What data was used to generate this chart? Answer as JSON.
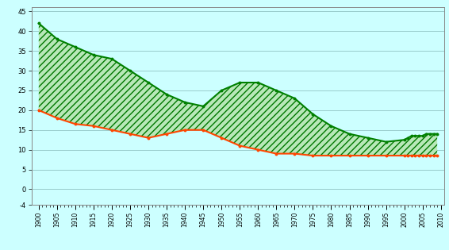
{
  "years": [
    1900,
    1905,
    1910,
    1915,
    1920,
    1925,
    1930,
    1935,
    1940,
    1945,
    1950,
    1955,
    1960,
    1965,
    1970,
    1975,
    1980,
    1985,
    1990,
    1995,
    2000,
    2001,
    2002,
    2003,
    2004,
    2005,
    2006,
    2007,
    2008,
    2009
  ],
  "natalidad": [
    42,
    38,
    36,
    34,
    33,
    30,
    27,
    24,
    22,
    21,
    25,
    27,
    27,
    25,
    23,
    19,
    16,
    14,
    13,
    12,
    12.5,
    13,
    13.5,
    13.5,
    13.5,
    13.5,
    14,
    14,
    14,
    14
  ],
  "mortalidad": [
    20,
    18,
    16.5,
    16,
    15,
    14,
    13,
    14,
    15,
    15,
    13,
    11,
    10,
    9,
    9,
    8.5,
    8.5,
    8.5,
    8.5,
    8.5,
    8.5,
    8.5,
    8.5,
    8.5,
    8.5,
    8.5,
    8.5,
    8.5,
    8.5,
    8.5
  ],
  "green_color": "#008000",
  "red_color": "#ff4500",
  "bg_color": "#ccffff",
  "fill_face": "#b8e8b8",
  "fill_edge": "#007700",
  "outer_bg": "#cce8ff",
  "ylim": [
    -4,
    46
  ],
  "xlim": [
    1898,
    2011
  ],
  "yticks": [
    -4,
    0,
    5,
    10,
    15,
    20,
    25,
    30,
    35,
    40,
    45
  ],
  "ytick_labels": [
    "-4",
    "0",
    "5",
    "10",
    "15",
    "20",
    "25",
    "30",
    "35",
    "40",
    "45"
  ],
  "major_xticks": [
    1900,
    1905,
    1910,
    1915,
    1920,
    1925,
    1930,
    1935,
    1940,
    1945,
    1950,
    1955,
    1960,
    1965,
    1970,
    1975,
    1980,
    1985,
    1990,
    1995,
    2000,
    2005,
    2010
  ],
  "major_xlabels": [
    "1900",
    "1905",
    "1910",
    "1915",
    "1920",
    "1925",
    "1930",
    "1935",
    "1940",
    "1945",
    "1950",
    "1955",
    "1960",
    "1965",
    "1970",
    "1975",
    "1980",
    "1985",
    "1990",
    "1995",
    "2000",
    "2005",
    "2010"
  ]
}
